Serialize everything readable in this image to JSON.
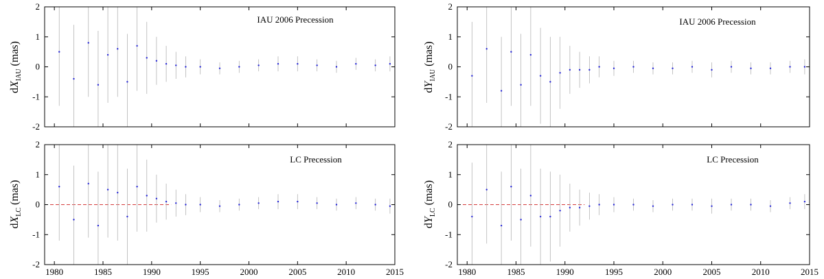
{
  "chart_data": [
    {
      "type": "scatter",
      "panel": "top-left",
      "annotation": "IAU 2006 Precession",
      "ylabel": {
        "prefix": "dX",
        "sub": "IAU",
        "suffix": " (mas)"
      },
      "xlim": [
        1979.0,
        2015.0
      ],
      "ylim": [
        -2,
        2
      ],
      "xticks": [
        1980,
        1985,
        1990,
        1995,
        2000,
        2005,
        2010,
        2015
      ],
      "yticks": [
        -2,
        -1,
        0,
        1,
        2
      ],
      "show_xticklabels": false,
      "reference_line": false,
      "points_color": "#2a2ad6",
      "errorbar_color": "#b4b4b4",
      "series": [
        {
          "x": [
            1980.5,
            1982.0,
            1983.5,
            1984.5,
            1985.5,
            1986.5,
            1987.5,
            1988.5,
            1989.5,
            1990.5,
            1991.5,
            1992.5,
            1993.5,
            1995.0,
            1997.0,
            1999.0,
            2001.0,
            2003.0,
            2005.0,
            2007.0,
            2009.0,
            2011.0,
            2013.0,
            2014.5
          ],
          "y": [
            0.5,
            -0.4,
            0.8,
            -0.6,
            0.4,
            0.6,
            -0.5,
            0.7,
            0.3,
            0.2,
            0.1,
            0.05,
            0.0,
            0.0,
            -0.05,
            0.0,
            0.05,
            0.1,
            0.1,
            0.05,
            0.0,
            0.1,
            0.05,
            0.1
          ],
          "err": [
            1.8,
            1.8,
            1.8,
            1.8,
            1.6,
            1.6,
            1.6,
            1.5,
            1.2,
            0.8,
            0.6,
            0.45,
            0.35,
            0.25,
            0.2,
            0.2,
            0.2,
            0.25,
            0.25,
            0.2,
            0.2,
            0.2,
            0.2,
            0.25
          ]
        }
      ]
    },
    {
      "type": "scatter",
      "panel": "top-right",
      "annotation": "IAU 2006 Precession",
      "ylabel": {
        "prefix": "dY",
        "sub": "IAU",
        "suffix": " (mas)"
      },
      "xlim": [
        1979.0,
        2015.0
      ],
      "ylim": [
        -2,
        2
      ],
      "xticks": [
        1980,
        1985,
        1990,
        1995,
        2000,
        2005,
        2010,
        2015
      ],
      "yticks": [
        -2,
        -1,
        0,
        1,
        2
      ],
      "show_xticklabels": false,
      "reference_line": false,
      "points_color": "#2a2ad6",
      "errorbar_color": "#b4b4b4",
      "series": [
        {
          "x": [
            1980.5,
            1982.0,
            1983.5,
            1984.5,
            1985.5,
            1986.5,
            1987.5,
            1988.5,
            1989.5,
            1990.5,
            1991.5,
            1992.5,
            1993.5,
            1995.0,
            1997.0,
            1999.0,
            2001.0,
            2003.0,
            2005.0,
            2007.0,
            2009.0,
            2011.0,
            2013.0,
            2014.5
          ],
          "y": [
            -0.3,
            0.6,
            -0.8,
            0.5,
            -0.6,
            0.4,
            -0.3,
            -0.5,
            -0.2,
            -0.1,
            -0.1,
            -0.1,
            0.0,
            -0.05,
            0.0,
            -0.05,
            -0.05,
            0.0,
            -0.1,
            0.0,
            -0.05,
            -0.05,
            0.0,
            0.0
          ],
          "err": [
            1.8,
            1.8,
            1.8,
            1.8,
            1.7,
            1.7,
            1.6,
            1.5,
            1.2,
            0.8,
            0.6,
            0.45,
            0.35,
            0.25,
            0.2,
            0.2,
            0.2,
            0.2,
            0.25,
            0.2,
            0.2,
            0.2,
            0.2,
            0.25
          ]
        }
      ]
    },
    {
      "type": "scatter",
      "panel": "bottom-left",
      "annotation": "LC Precession",
      "ylabel": {
        "prefix": "dX",
        "sub": "LC",
        "suffix": " (mas)"
      },
      "xlim": [
        1979.0,
        2015.0
      ],
      "ylim": [
        -2,
        2
      ],
      "xticks": [
        1980,
        1985,
        1990,
        1995,
        2000,
        2005,
        2010,
        2015
      ],
      "xticklabels": [
        "1980",
        "1985",
        "1990",
        "1995",
        "2000",
        "2005",
        "2010",
        "2015"
      ],
      "yticks": [
        -2,
        -1,
        0,
        1,
        2
      ],
      "show_xticklabels": true,
      "reference_line": true,
      "points_color": "#2a2ad6",
      "errorbar_color": "#b4b4b4",
      "series": [
        {
          "x": [
            1980.5,
            1982.0,
            1983.5,
            1984.5,
            1985.5,
            1986.5,
            1987.5,
            1988.5,
            1989.5,
            1990.5,
            1991.5,
            1992.5,
            1993.5,
            1995.0,
            1997.0,
            1999.0,
            2001.0,
            2003.0,
            2005.0,
            2007.0,
            2009.0,
            2011.0,
            2013.0,
            2014.5
          ],
          "y": [
            0.6,
            -0.5,
            0.7,
            -0.7,
            0.5,
            0.4,
            -0.4,
            0.6,
            0.3,
            0.2,
            0.1,
            0.05,
            0.0,
            0.0,
            -0.05,
            0.0,
            0.05,
            0.1,
            0.1,
            0.05,
            0.0,
            0.05,
            0.0,
            -0.05
          ],
          "err": [
            1.8,
            1.8,
            1.8,
            1.8,
            1.6,
            1.6,
            1.6,
            1.5,
            1.2,
            0.8,
            0.6,
            0.45,
            0.35,
            0.25,
            0.2,
            0.2,
            0.2,
            0.25,
            0.25,
            0.2,
            0.2,
            0.2,
            0.2,
            0.25
          ]
        }
      ]
    },
    {
      "type": "scatter",
      "panel": "bottom-right",
      "annotation": "LC Precession",
      "ylabel": {
        "prefix": "dY",
        "sub": "LC",
        "suffix": " (mas)"
      },
      "xlim": [
        1979.0,
        2015.0
      ],
      "ylim": [
        -2,
        2
      ],
      "xticks": [
        1980,
        1985,
        1990,
        1995,
        2000,
        2005,
        2010,
        2015
      ],
      "xticklabels": [
        "1980",
        "1985",
        "1990",
        "1995",
        "2000",
        "2005",
        "2010",
        "2015"
      ],
      "yticks": [
        -2,
        -1,
        0,
        1,
        2
      ],
      "show_xticklabels": true,
      "reference_line": true,
      "points_color": "#2a2ad6",
      "errorbar_color": "#b4b4b4",
      "series": [
        {
          "x": [
            1980.5,
            1982.0,
            1983.5,
            1984.5,
            1985.5,
            1986.5,
            1987.5,
            1988.5,
            1989.5,
            1990.5,
            1991.5,
            1992.5,
            1993.5,
            1995.0,
            1997.0,
            1999.0,
            2001.0,
            2003.0,
            2005.0,
            2007.0,
            2009.0,
            2011.0,
            2013.0,
            2014.5
          ],
          "y": [
            -0.4,
            0.5,
            -0.7,
            0.6,
            -0.5,
            0.3,
            -0.4,
            -0.4,
            -0.2,
            -0.1,
            -0.1,
            -0.05,
            0.0,
            0.0,
            0.0,
            -0.05,
            0.0,
            0.0,
            -0.05,
            0.0,
            0.0,
            -0.05,
            0.05,
            0.1
          ],
          "err": [
            1.8,
            1.8,
            1.8,
            1.8,
            1.7,
            1.7,
            1.6,
            1.5,
            1.2,
            0.8,
            0.6,
            0.45,
            0.35,
            0.25,
            0.2,
            0.2,
            0.2,
            0.2,
            0.25,
            0.2,
            0.2,
            0.2,
            0.2,
            0.25
          ]
        }
      ]
    }
  ]
}
